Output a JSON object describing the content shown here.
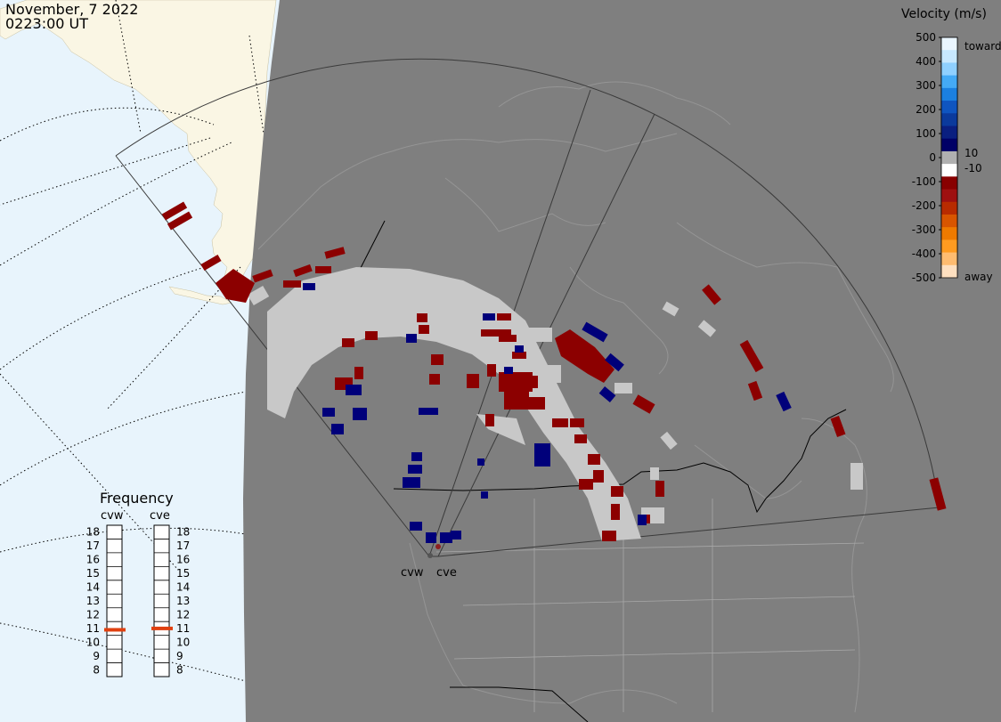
{
  "header": {
    "date": "November, 7 2022",
    "time": "0223:00 UT"
  },
  "colorbar": {
    "title": "Velocity (m/s)",
    "ticks": [
      "500",
      "400",
      "300",
      "200",
      "100",
      "0",
      "-100",
      "-200",
      "-300",
      "-400",
      "-500"
    ],
    "toward_label": "toward",
    "away_label": "away",
    "small_pos": "10",
    "small_neg": "-10",
    "colors": [
      "#eaf6ff",
      "#c7e8ff",
      "#8fd0ff",
      "#44aaf5",
      "#1b80e0",
      "#0f55c0",
      "#0b3a9c",
      "#0a1f80",
      "#000066",
      "#b0b0b0",
      "#ffffff",
      "#880000",
      "#9e1010",
      "#b82b00",
      "#d85500",
      "#ee7a00",
      "#ff9b20",
      "#ffbc70",
      "#ffe0c0"
    ]
  },
  "frequency": {
    "title": "Frequency",
    "radars": [
      "cvw",
      "cve"
    ],
    "scale": [
      "18",
      "17",
      "16",
      "15",
      "14",
      "13",
      "12",
      "11",
      "10",
      "9",
      "8"
    ],
    "values_mhz": [
      10.9,
      11.0
    ]
  },
  "radar_labels": [
    "cvw",
    "cve"
  ],
  "colors": {
    "ocean": "#e8f4fc",
    "land": "#faf6e4",
    "night": "#7f7f7f",
    "echo_red": "#8c0000",
    "echo_blue": "#000080",
    "ground_scatter": "#c8c8c8",
    "marker": "#e04010"
  }
}
